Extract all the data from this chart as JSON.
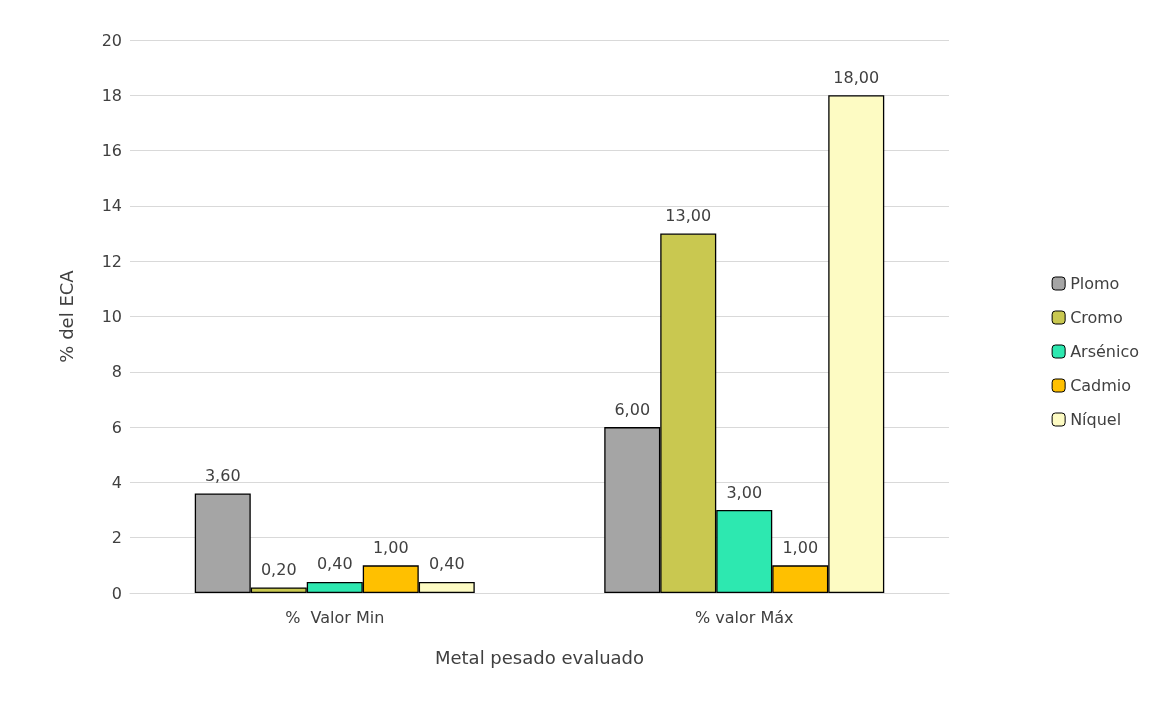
{
  "chart_data": {
    "type": "bar",
    "xlabel": "Metal pesado evaluado",
    "ylabel": "% del ECA",
    "categories": [
      "%  Valor Min",
      "% valor Máx"
    ],
    "series": [
      {
        "name": "Plomo",
        "color": "#a5a5a5",
        "values": [
          3.6,
          6
        ],
        "value_labels": [
          "3,60",
          "6,00"
        ]
      },
      {
        "name": "Cromo",
        "color": "#c9c850",
        "values": [
          0.2,
          13
        ],
        "value_labels": [
          "0,20",
          "13,00"
        ]
      },
      {
        "name": "Arsénico",
        "color": "#2de8b0",
        "values": [
          0.4,
          3
        ],
        "value_labels": [
          "0,40",
          "3,00"
        ]
      },
      {
        "name": "Cadmio",
        "color": "#ffc000",
        "values": [
          1,
          1
        ],
        "value_labels": [
          "1,00",
          "1,00"
        ]
      },
      {
        "name": "Níquel",
        "color": "#fdfbc3",
        "values": [
          0.4,
          18
        ],
        "value_labels": [
          "0,40",
          "18,00"
        ]
      }
    ],
    "ylim": [
      0,
      20
    ],
    "yticks": [
      0,
      2,
      4,
      6,
      8,
      10,
      12,
      14,
      16,
      18,
      20
    ],
    "grid": "y",
    "legend": "right"
  }
}
